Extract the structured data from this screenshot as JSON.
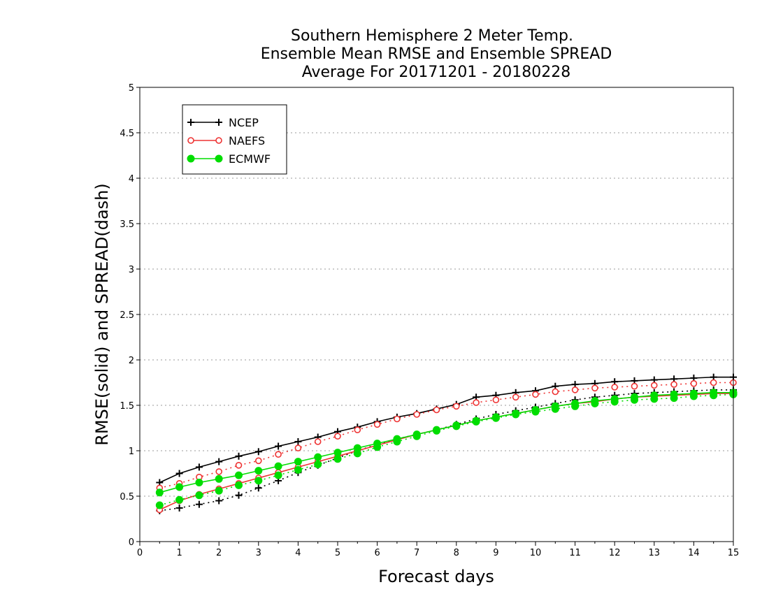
{
  "chart_data": {
    "type": "line",
    "title_lines": [
      "Southern Hemisphere 2 Meter Temp.",
      "Ensemble Mean RMSE and Ensemble SPREAD",
      "Average For 20171201 - 20180228"
    ],
    "xlabel": "Forecast days",
    "ylabel": "RMSE(solid) and SPREAD(dash)",
    "xlim": [
      0,
      15
    ],
    "ylim": [
      0,
      5
    ],
    "x_ticks": [
      "0",
      "1",
      "2",
      "3",
      "4",
      "5",
      "6",
      "7",
      "8",
      "9",
      "10",
      "11",
      "12",
      "13",
      "14",
      "15"
    ],
    "y_ticks": [
      "0",
      "0.5",
      "1",
      "1.5",
      "2",
      "2.5",
      "3",
      "3.5",
      "4",
      "4.5",
      "5"
    ],
    "grid": true,
    "legend_position": "top-left",
    "x": [
      0.5,
      1,
      1.5,
      2,
      2.5,
      3,
      3.5,
      4,
      4.5,
      5,
      5.5,
      6,
      6.5,
      7,
      7.5,
      8,
      8.5,
      9,
      9.5,
      10,
      10.5,
      11,
      11.5,
      12,
      12.5,
      13,
      13.5,
      14,
      14.5,
      15
    ],
    "series": [
      {
        "name": "NCEP",
        "color": "#000000",
        "marker": "plus",
        "rmse": [
          0.65,
          0.75,
          0.82,
          0.88,
          0.94,
          0.99,
          1.05,
          1.1,
          1.15,
          1.21,
          1.26,
          1.32,
          1.37,
          1.41,
          1.46,
          1.51,
          1.59,
          1.61,
          1.64,
          1.66,
          1.71,
          1.73,
          1.74,
          1.76,
          1.77,
          1.78,
          1.79,
          1.8,
          1.81,
          1.81
        ],
        "spread": [
          0.34,
          0.37,
          0.41,
          0.45,
          0.51,
          0.59,
          0.67,
          0.76,
          0.84,
          0.92,
          1.0,
          1.07,
          1.13,
          1.18,
          1.23,
          1.29,
          1.35,
          1.4,
          1.44,
          1.48,
          1.52,
          1.56,
          1.59,
          1.61,
          1.63,
          1.64,
          1.65,
          1.66,
          1.67,
          1.67
        ]
      },
      {
        "name": "NAEFS",
        "color": "#ee3333",
        "marker": "circle",
        "rmse": [
          0.35,
          0.45,
          0.52,
          0.58,
          0.64,
          0.7,
          0.76,
          0.82,
          0.88,
          0.94,
          1.0,
          1.06,
          1.12,
          1.18,
          1.23,
          1.28,
          1.33,
          1.37,
          1.41,
          1.45,
          1.49,
          1.52,
          1.54,
          1.57,
          1.59,
          1.6,
          1.61,
          1.62,
          1.63,
          1.63
        ],
        "spread": [
          0.59,
          0.64,
          0.71,
          0.77,
          0.84,
          0.89,
          0.96,
          1.03,
          1.1,
          1.16,
          1.23,
          1.29,
          1.35,
          1.4,
          1.45,
          1.49,
          1.53,
          1.56,
          1.59,
          1.62,
          1.65,
          1.67,
          1.69,
          1.7,
          1.71,
          1.72,
          1.73,
          1.74,
          1.75,
          1.75
        ]
      },
      {
        "name": "ECMWF",
        "color": "#00dd00",
        "marker": "dot",
        "rmse": [
          0.54,
          0.6,
          0.65,
          0.69,
          0.73,
          0.78,
          0.83,
          0.88,
          0.93,
          0.98,
          1.03,
          1.08,
          1.13,
          1.18,
          1.23,
          1.28,
          1.33,
          1.37,
          1.41,
          1.45,
          1.49,
          1.52,
          1.55,
          1.57,
          1.59,
          1.61,
          1.62,
          1.63,
          1.64,
          1.64
        ],
        "spread": [
          0.4,
          0.46,
          0.51,
          0.56,
          0.62,
          0.67,
          0.73,
          0.79,
          0.85,
          0.91,
          0.97,
          1.04,
          1.1,
          1.16,
          1.22,
          1.27,
          1.32,
          1.36,
          1.4,
          1.43,
          1.46,
          1.49,
          1.52,
          1.54,
          1.56,
          1.57,
          1.58,
          1.6,
          1.61,
          1.62
        ]
      }
    ]
  }
}
